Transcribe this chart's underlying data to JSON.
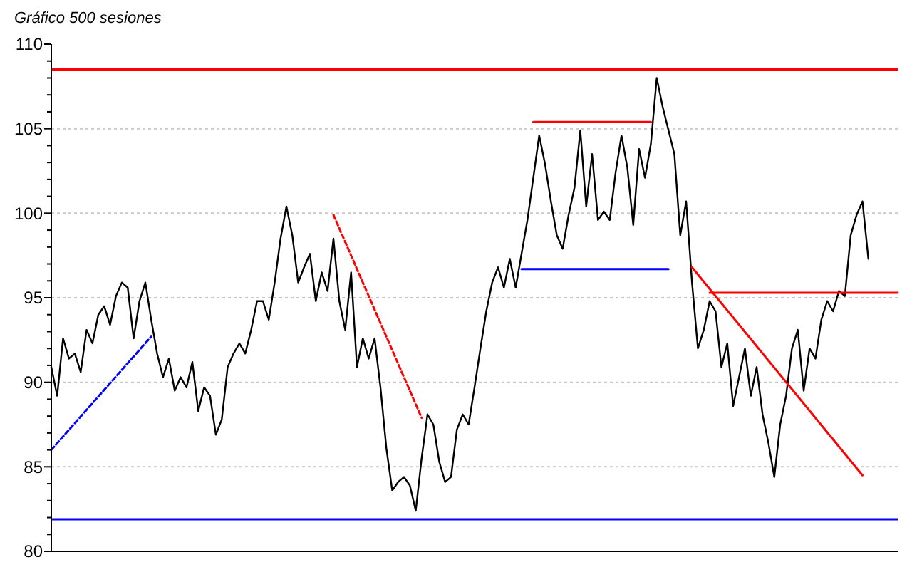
{
  "chart_data": {
    "type": "line",
    "title": "Gráfico 500 sesiones",
    "ylim": [
      80,
      110
    ],
    "categories": [
      null,
      null,
      null,
      null,
      null,
      null,
      null,
      null,
      null,
      null,
      null,
      null,
      null,
      null,
      null,
      null,
      null,
      null,
      null,
      null,
      null,
      null,
      null,
      null,
      null,
      null,
      null,
      null,
      null,
      null,
      null,
      null,
      null,
      null,
      null,
      null,
      null,
      null,
      null,
      null,
      null,
      null,
      null,
      null,
      null,
      null,
      null,
      null,
      null,
      null,
      null,
      null,
      null,
      null,
      null,
      null,
      null,
      null,
      null,
      null,
      null,
      null,
      null,
      null,
      null,
      null,
      null,
      null,
      null,
      null,
      null,
      null,
      null,
      null,
      null,
      null,
      null,
      null,
      null,
      null,
      null,
      null,
      null,
      null,
      null,
      null,
      null,
      null,
      null,
      null,
      null,
      null,
      null,
      null,
      null,
      null,
      null,
      null,
      null,
      null,
      null,
      null,
      null,
      null,
      null,
      null,
      null,
      null,
      null,
      null,
      null,
      null,
      null,
      null,
      null,
      null,
      null,
      null,
      null,
      null,
      null,
      null,
      null,
      null,
      null,
      null,
      null,
      null,
      null,
      null,
      null,
      null,
      null,
      null,
      null,
      null,
      null,
      null,
      null,
      null,
      null,
      null,
      null,
      null,
      null
    ],
    "yticks": [
      80,
      {
        "value": 81,
        "label": null
      },
      {
        "value": 82,
        "label": null
      },
      {
        "value": 83,
        "label": null
      },
      {
        "value": 84,
        "label": null
      },
      85,
      {
        "value": 86,
        "label": null
      },
      {
        "value": 87,
        "label": null
      },
      {
        "value": 88,
        "label": null
      },
      {
        "value": 89,
        "label": null
      },
      90,
      {
        "value": 91,
        "label": null
      },
      {
        "value": 92,
        "label": null
      },
      {
        "value": 93,
        "label": null
      },
      {
        "value": 94,
        "label": null
      },
      95,
      {
        "value": 96,
        "label": null
      },
      {
        "value": 97,
        "label": null
      },
      {
        "value": 98,
        "label": null
      },
      {
        "value": 99,
        "label": null
      },
      100,
      {
        "value": 101,
        "label": null
      },
      {
        "value": 102,
        "label": null
      },
      {
        "value": 103,
        "label": null
      },
      {
        "value": 104,
        "label": null
      },
      105,
      {
        "value": 106,
        "label": null
      },
      {
        "value": 107,
        "label": null
      },
      {
        "value": 108,
        "label": null
      },
      {
        "value": 109,
        "label": null
      },
      110
    ],
    "tick_labels": "y",
    "grid": "y",
    "marker": "none",
    "ref_lines": [
      {
        "axis": "y",
        "value": 108.5,
        "color": "#ff0000"
      },
      {
        "axis": "y",
        "value": 81.9,
        "color": "#0000ff"
      }
    ],
    "series": [
      {
        "color": "#000000",
        "line_style": "solid",
        "values": [
          90.9,
          89.2,
          92.6,
          91.4,
          91.7,
          90.6,
          93.1,
          92.3,
          94.0,
          94.5,
          93.4,
          95.1,
          95.9,
          95.6,
          92.6,
          94.8,
          95.9,
          93.7,
          91.7,
          90.3,
          91.4,
          89.5,
          90.3,
          89.7,
          91.2,
          88.3,
          89.7,
          89.2,
          86.9,
          87.8,
          90.9,
          91.7,
          92.3,
          91.7,
          93.1,
          94.8,
          94.8,
          93.7,
          95.9,
          98.5,
          100.4,
          98.7,
          95.9,
          96.8,
          97.6,
          94.8,
          96.5,
          95.4,
          98.5,
          94.8,
          93.1,
          96.5,
          90.9,
          92.6,
          91.4,
          92.6,
          89.7,
          86.1,
          83.6,
          84.1,
          84.4,
          83.9,
          82.4,
          85.5,
          88.1,
          87.5,
          85.3,
          84.1,
          84.4,
          87.2,
          88.1,
          87.5,
          89.7,
          92.0,
          94.2,
          95.9,
          96.8,
          95.6,
          97.3,
          95.6,
          97.6,
          99.6,
          102.1,
          104.6,
          102.9,
          100.7,
          98.7,
          97.9,
          99.9,
          101.5,
          104.9,
          100.4,
          103.5,
          99.6,
          100.1,
          99.6,
          102.4,
          104.6,
          102.7,
          99.3,
          103.8,
          102.1,
          104.1,
          108.0,
          106.3,
          104.9,
          103.5,
          98.7,
          100.7,
          95.9,
          92.0,
          93.1,
          94.8,
          94.2,
          90.9,
          92.3,
          88.6,
          90.3,
          92.0,
          89.2,
          90.9,
          88.1,
          86.4,
          84.4,
          87.5,
          89.2,
          92.0,
          93.1,
          89.5,
          92.0,
          91.4,
          93.7,
          94.8,
          94.2,
          95.4,
          95.1,
          98.7,
          99.9,
          100.7,
          97.3,
          null,
          null,
          null,
          null,
          null
        ]
      },
      {
        "color": "#0000ff",
        "line_style": "dashed",
        "values": [
          86.0,
          null,
          null,
          null,
          null,
          null,
          null,
          null,
          null,
          null,
          null,
          null,
          null,
          null,
          null,
          null,
          null,
          92.7,
          null,
          null,
          null,
          null,
          null,
          null,
          null,
          null,
          null,
          null,
          null,
          null,
          null,
          null,
          null,
          null,
          null,
          null,
          null,
          null,
          null,
          null,
          null,
          null,
          null,
          null,
          null,
          null,
          null,
          null,
          null,
          null,
          null,
          null,
          null,
          null,
          null,
          null,
          null,
          null,
          null,
          null,
          null,
          null,
          null,
          null,
          null,
          null,
          null,
          null,
          null,
          null,
          null,
          null,
          null,
          null,
          null,
          null,
          null,
          null,
          null,
          null,
          null,
          null,
          null,
          null,
          null,
          null,
          null,
          null,
          null,
          null,
          null,
          null,
          null,
          null,
          null,
          null,
          null,
          null,
          null,
          null,
          null,
          null,
          null,
          null,
          null,
          null,
          null,
          null,
          null,
          null,
          null,
          null,
          null,
          null,
          null,
          null,
          null,
          null,
          null,
          null,
          null,
          null,
          null,
          null,
          null,
          null,
          null,
          null,
          null,
          null,
          null,
          null,
          null,
          null,
          null,
          null,
          null,
          null,
          null,
          null,
          null,
          null,
          null,
          null,
          null
        ]
      },
      {
        "color": "#ff0000",
        "line_style": "dashed",
        "values": [
          null,
          null,
          null,
          null,
          null,
          null,
          null,
          null,
          null,
          null,
          null,
          null,
          null,
          null,
          null,
          null,
          null,
          null,
          null,
          null,
          null,
          null,
          null,
          null,
          null,
          null,
          null,
          null,
          null,
          null,
          null,
          null,
          null,
          null,
          null,
          null,
          null,
          null,
          null,
          null,
          null,
          null,
          null,
          null,
          null,
          null,
          null,
          null,
          99.9,
          null,
          null,
          null,
          null,
          null,
          null,
          null,
          null,
          null,
          null,
          null,
          null,
          null,
          null,
          87.9,
          null,
          null,
          null,
          null,
          null,
          null,
          null,
          null,
          null,
          null,
          null,
          null,
          null,
          null,
          null,
          null,
          null,
          null,
          null,
          null,
          null,
          null,
          null,
          null,
          null,
          null,
          null,
          null,
          null,
          null,
          null,
          null,
          null,
          null,
          null,
          null,
          null,
          null,
          null,
          null,
          null,
          null,
          null,
          null,
          null,
          null,
          null,
          null,
          null,
          null,
          null,
          null,
          null,
          null,
          null,
          null,
          null,
          null,
          null,
          null,
          null,
          null,
          null,
          null,
          null,
          null,
          null,
          null,
          null,
          null,
          null,
          null,
          null,
          null,
          null,
          null,
          null,
          null,
          null,
          null,
          null
        ]
      },
      {
        "color": "#ff0000",
        "line_style": "solid",
        "values": [
          null,
          null,
          null,
          null,
          null,
          null,
          null,
          null,
          null,
          null,
          null,
          null,
          null,
          null,
          null,
          null,
          null,
          null,
          null,
          null,
          null,
          null,
          null,
          null,
          null,
          null,
          null,
          null,
          null,
          null,
          null,
          null,
          null,
          null,
          null,
          null,
          null,
          null,
          null,
          null,
          null,
          null,
          null,
          null,
          null,
          null,
          null,
          null,
          null,
          null,
          null,
          null,
          null,
          null,
          null,
          null,
          null,
          null,
          null,
          null,
          null,
          null,
          null,
          null,
          null,
          null,
          null,
          null,
          null,
          null,
          null,
          null,
          null,
          null,
          null,
          null,
          null,
          null,
          null,
          null,
          null,
          null,
          null,
          null,
          null,
          null,
          null,
          null,
          null,
          null,
          null,
          null,
          null,
          null,
          null,
          null,
          null,
          null,
          null,
          null,
          null,
          null,
          null,
          null,
          null,
          null,
          null,
          null,
          null,
          96.8,
          null,
          null,
          null,
          null,
          null,
          null,
          null,
          null,
          null,
          null,
          null,
          null,
          null,
          null,
          null,
          null,
          null,
          null,
          null,
          null,
          null,
          null,
          null,
          null,
          null,
          null,
          null,
          null,
          84.5,
          null,
          null,
          null,
          null,
          null,
          null
        ]
      },
      {
        "color": "#ff0000",
        "line_style": "solid",
        "values": [
          null,
          null,
          null,
          null,
          null,
          null,
          null,
          null,
          null,
          null,
          null,
          null,
          null,
          null,
          null,
          null,
          null,
          null,
          null,
          null,
          null,
          null,
          null,
          null,
          null,
          null,
          null,
          null,
          null,
          null,
          null,
          null,
          null,
          null,
          null,
          null,
          null,
          null,
          null,
          null,
          null,
          null,
          null,
          null,
          null,
          null,
          null,
          null,
          null,
          null,
          null,
          null,
          null,
          null,
          null,
          null,
          null,
          null,
          null,
          null,
          null,
          null,
          null,
          null,
          null,
          null,
          null,
          null,
          null,
          null,
          null,
          null,
          null,
          null,
          null,
          null,
          null,
          null,
          null,
          null,
          null,
          null,
          105.4,
          null,
          null,
          null,
          null,
          null,
          null,
          null,
          null,
          null,
          null,
          null,
          null,
          null,
          null,
          null,
          null,
          null,
          null,
          null,
          105.4,
          null,
          null,
          null,
          null,
          null,
          null,
          null,
          null,
          null,
          null,
          null,
          null,
          null,
          null,
          null,
          null,
          null,
          null,
          null,
          null,
          null,
          null,
          null,
          null,
          null,
          null,
          null,
          null,
          null,
          null,
          null,
          null,
          null,
          null,
          null,
          null,
          null,
          null,
          null,
          null,
          null,
          null
        ]
      },
      {
        "color": "#0000ff",
        "line_style": "solid",
        "values": [
          null,
          null,
          null,
          null,
          null,
          null,
          null,
          null,
          null,
          null,
          null,
          null,
          null,
          null,
          null,
          null,
          null,
          null,
          null,
          null,
          null,
          null,
          null,
          null,
          null,
          null,
          null,
          null,
          null,
          null,
          null,
          null,
          null,
          null,
          null,
          null,
          null,
          null,
          null,
          null,
          null,
          null,
          null,
          null,
          null,
          null,
          null,
          null,
          null,
          null,
          null,
          null,
          null,
          null,
          null,
          null,
          null,
          null,
          null,
          null,
          null,
          null,
          null,
          null,
          null,
          null,
          null,
          null,
          null,
          null,
          null,
          null,
          null,
          null,
          null,
          null,
          null,
          null,
          null,
          null,
          96.7,
          null,
          null,
          null,
          null,
          null,
          null,
          null,
          null,
          null,
          null,
          null,
          null,
          null,
          null,
          null,
          null,
          null,
          null,
          null,
          null,
          null,
          null,
          null,
          null,
          96.7,
          null,
          null,
          null,
          null,
          null,
          null,
          null,
          null,
          null,
          null,
          null,
          null,
          null,
          null,
          null,
          null,
          null,
          null,
          null,
          null,
          null,
          null,
          null,
          null,
          null,
          null,
          null,
          null,
          null,
          null,
          null,
          null,
          null,
          null,
          null,
          null,
          null,
          null,
          null
        ]
      },
      {
        "color": "#ff0000",
        "line_style": "solid",
        "values": [
          null,
          null,
          null,
          null,
          null,
          null,
          null,
          null,
          null,
          null,
          null,
          null,
          null,
          null,
          null,
          null,
          null,
          null,
          null,
          null,
          null,
          null,
          null,
          null,
          null,
          null,
          null,
          null,
          null,
          null,
          null,
          null,
          null,
          null,
          null,
          null,
          null,
          null,
          null,
          null,
          null,
          null,
          null,
          null,
          null,
          null,
          null,
          null,
          null,
          null,
          null,
          null,
          null,
          null,
          null,
          null,
          null,
          null,
          null,
          null,
          null,
          null,
          null,
          null,
          null,
          null,
          null,
          null,
          null,
          null,
          null,
          null,
          null,
          null,
          null,
          null,
          null,
          null,
          null,
          null,
          null,
          null,
          null,
          null,
          null,
          null,
          null,
          null,
          null,
          null,
          null,
          null,
          null,
          null,
          null,
          null,
          null,
          null,
          null,
          null,
          null,
          null,
          null,
          null,
          null,
          null,
          null,
          null,
          null,
          null,
          null,
          null,
          95.3,
          null,
          null,
          null,
          null,
          null,
          null,
          null,
          null,
          null,
          null,
          null,
          null,
          null,
          null,
          null,
          null,
          null,
          null,
          null,
          null,
          null,
          null,
          null,
          null,
          null,
          null,
          null,
          null,
          null,
          null,
          null,
          95.3
        ]
      }
    ]
  }
}
